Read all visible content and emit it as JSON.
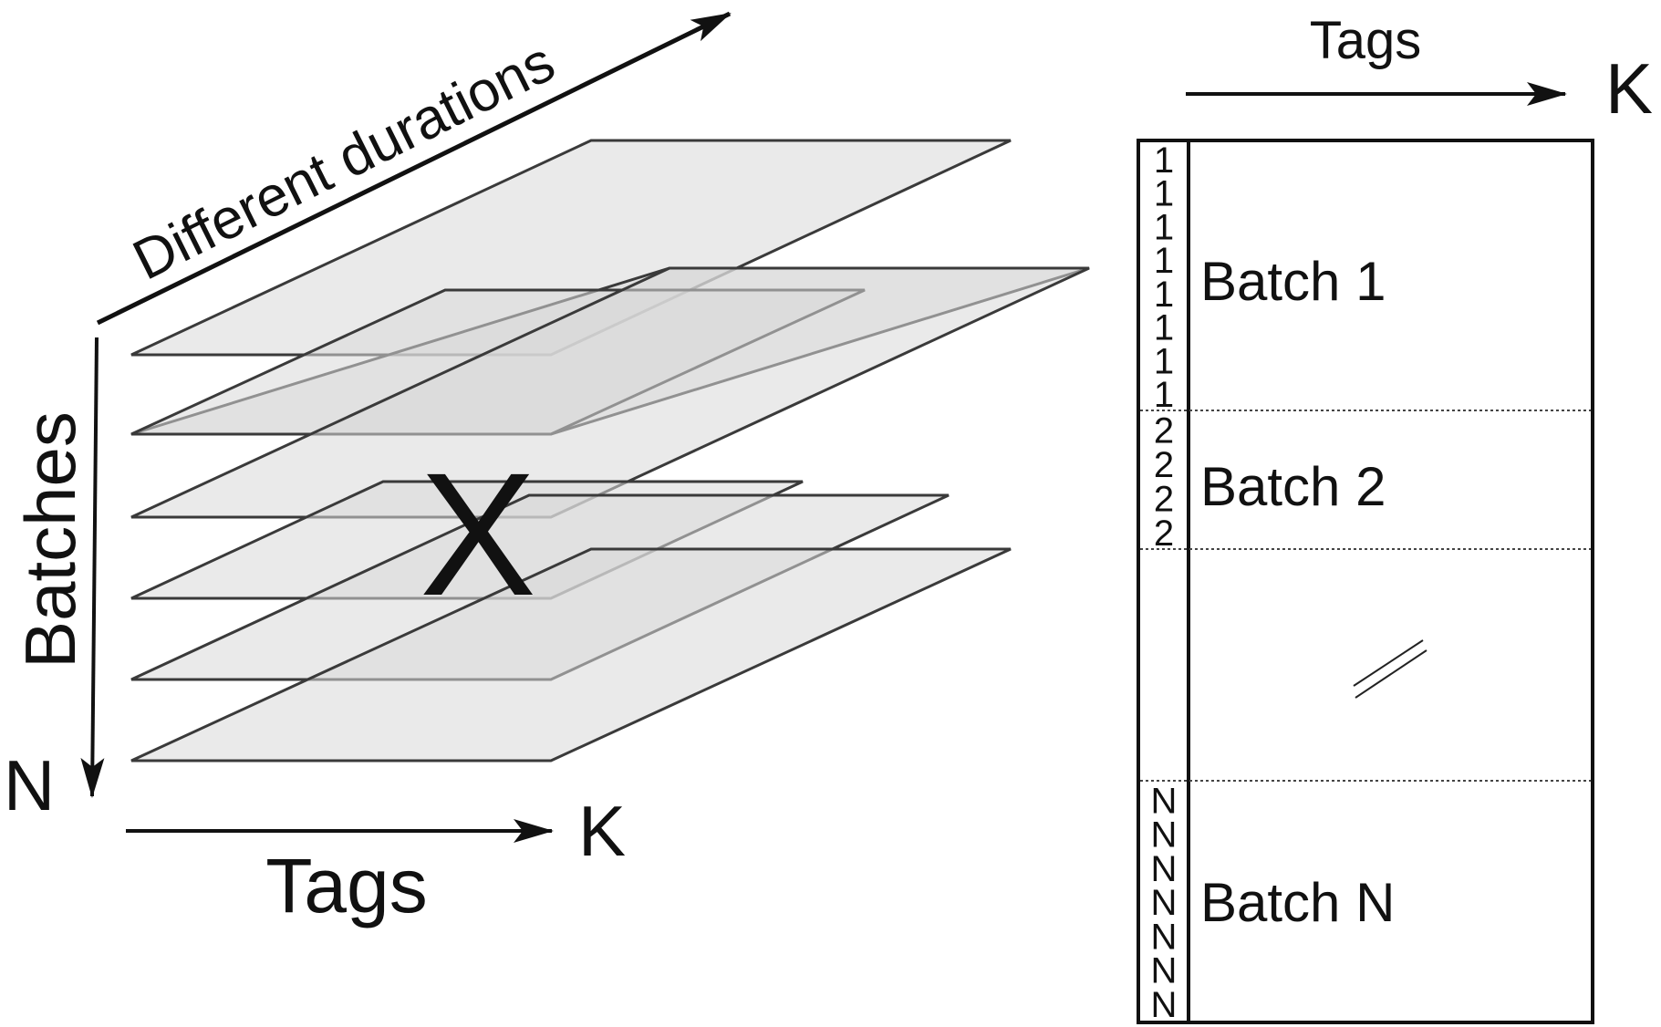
{
  "left_panel": {
    "axis_depth_label": "Different durations",
    "axis_vertical_label": "Batches",
    "axis_vertical_end": "N",
    "axis_horizontal_label": "Tags",
    "axis_horizontal_end": "K",
    "tensor_symbol": "X",
    "plane_color": "#d9d9d9"
  },
  "right_panel": {
    "axis_label": "Tags",
    "axis_end": "K",
    "batches": [
      {
        "label": "Batch 1",
        "index_marks": [
          "1",
          "1",
          "1",
          "1",
          "1",
          "1",
          "1",
          "1"
        ]
      },
      {
        "label": "Batch 2",
        "index_marks": [
          "2",
          "2",
          "2",
          "2"
        ]
      },
      {
        "label": "",
        "index_marks": []
      },
      {
        "label": "Batch N",
        "index_marks": [
          "N",
          "N",
          "N",
          "N",
          "N",
          "N",
          "N"
        ]
      }
    ]
  }
}
